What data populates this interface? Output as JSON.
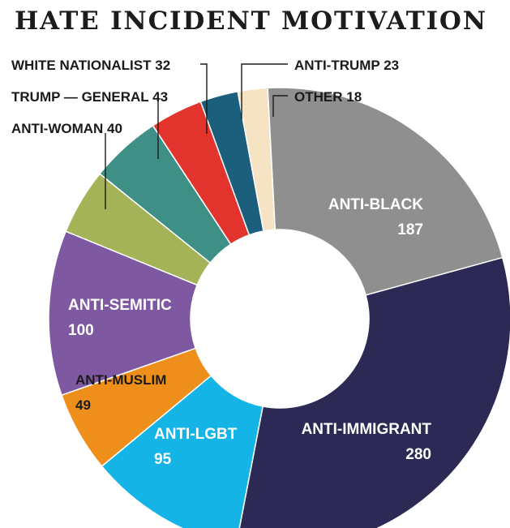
{
  "chart_data": {
    "type": "pie",
    "title": "HATE INCIDENT MOTIVATION",
    "start_category": "ANTI-BLACK",
    "slices": [
      {
        "name": "ANTI-BLACK",
        "value": 187,
        "value_label": "187",
        "color": "#8f8f8f",
        "label_color": "#ffffff",
        "label_style": "inside"
      },
      {
        "name": "ANTI-IMMIGRANT",
        "value": 280,
        "value_label": "280",
        "color": "#2c2a54",
        "label_color": "#ffffff",
        "label_style": "inside"
      },
      {
        "name": "ANTI-LGBT",
        "value": 95,
        "value_label": "95",
        "color": "#14b4e6",
        "label_color": "#ffffff",
        "label_style": "inside"
      },
      {
        "name": "ANTI-MUSLIM",
        "value": 49,
        "value_label": "49",
        "color": "#ee8f1b",
        "label_color": "#1a1a1a",
        "label_style": "inside"
      },
      {
        "name": "ANTI-SEMITIC",
        "value": 100,
        "value_label": "100",
        "color": "#7f58a2",
        "label_color": "#ffffff",
        "label_style": "inside"
      },
      {
        "name": "ANTI-WOMAN",
        "value": 40,
        "value_label": "40",
        "color": "#a5b358",
        "label_color": "#1a1a1a",
        "label_style": "callout"
      },
      {
        "name": "TRUMP — GENERAL",
        "value": 43,
        "value_label": "43",
        "color": "#3e8f85",
        "label_color": "#1a1a1a",
        "label_style": "callout"
      },
      {
        "name": "WHITE NATIONALIST",
        "value": 32,
        "value_label": "32",
        "color": "#e3332d",
        "label_color": "#1a1a1a",
        "label_style": "callout"
      },
      {
        "name": "ANTI-TRUMP",
        "value": 23,
        "value_label": "23",
        "color": "#1b5f7c",
        "label_color": "#1a1a1a",
        "label_style": "callout"
      },
      {
        "name": "OTHER",
        "value": 18,
        "value_label": "18",
        "color": "#f6e3c4",
        "label_color": "#1a1a1a",
        "label_style": "callout"
      }
    ]
  }
}
